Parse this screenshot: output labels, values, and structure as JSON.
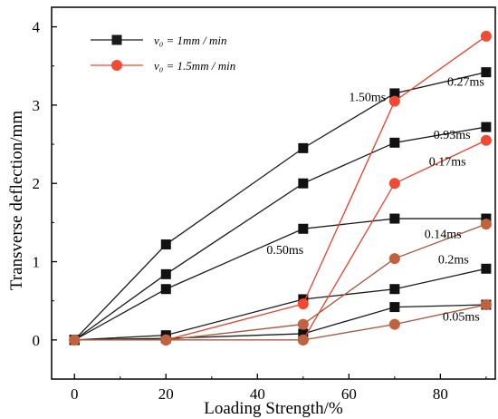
{
  "chart_data": {
    "type": "line",
    "xlabel": "Loading Strength/%",
    "ylabel": "Transverse deflection/mm",
    "xlim": [
      -5,
      92
    ],
    "ylim": [
      -0.5,
      4.25
    ],
    "xticks": [
      0,
      20,
      40,
      60,
      80
    ],
    "yticks": [
      0,
      1,
      2,
      3,
      4
    ],
    "x": [
      0,
      20,
      50,
      70,
      90
    ],
    "grid": false,
    "legend_position": "top-left",
    "colors": {
      "black": "#1a1a1a",
      "red": "#e8402c",
      "brown": "#a8563c",
      "red_marker": "#f04a34",
      "brown_marker": "#c0623e"
    },
    "legend": [
      {
        "label": "v₀ = 1mm / min",
        "marker": "square",
        "color": "#1a1a1a"
      },
      {
        "label": "v₀ = 1.5mm / min",
        "marker": "circle",
        "color": "#f04a34"
      }
    ],
    "series": [
      {
        "marker": "square",
        "line_color": "#1a1a1a",
        "marker_color": "#111111",
        "values": [
          0,
          1.22,
          2.45,
          3.15,
          3.42
        ]
      },
      {
        "marker": "square",
        "line_color": "#1a1a1a",
        "marker_color": "#111111",
        "values": [
          0,
          0.84,
          2.0,
          2.52,
          2.72
        ]
      },
      {
        "marker": "square",
        "line_color": "#1a1a1a",
        "marker_color": "#111111",
        "values": [
          0,
          0.65,
          1.42,
          1.55,
          1.55
        ]
      },
      {
        "marker": "square",
        "line_color": "#1a1a1a",
        "marker_color": "#111111",
        "values": [
          0,
          0.06,
          0.52,
          0.65,
          0.91
        ]
      },
      {
        "marker": "square",
        "line_color": "#1a1a1a",
        "marker_color": "#111111",
        "values": [
          0,
          0.02,
          0.08,
          0.42,
          0.45
        ]
      },
      {
        "marker": "circle",
        "line_color": "#e8402c",
        "marker_color": "#f04a34",
        "values": [
          0,
          0.0,
          0.46,
          3.05,
          3.88
        ]
      },
      {
        "marker": "circle",
        "line_color": "#e8402c",
        "marker_color": "#f04a34",
        "values": [
          0,
          0.0,
          0.0,
          2.0,
          2.55
        ]
      },
      {
        "marker": "circle",
        "line_color": "#a8563c",
        "marker_color": "#c0623e",
        "values": [
          0,
          0.0,
          0.2,
          1.04,
          1.48
        ]
      },
      {
        "marker": "circle",
        "line_color": "#a8563c",
        "marker_color": "#c0623e",
        "values": [
          0,
          0.0,
          0.0,
          0.2,
          0.45
        ]
      }
    ],
    "annotations": [
      {
        "text": "1.50ms",
        "x": 60,
        "y": 3.05
      },
      {
        "text": "0.27ms",
        "x": 81.5,
        "y": 3.25
      },
      {
        "text": "0.93ms",
        "x": 78.5,
        "y": 2.57
      },
      {
        "text": "0.17ms",
        "x": 77.5,
        "y": 2.23
      },
      {
        "text": "0.50ms",
        "x": 42,
        "y": 1.1
      },
      {
        "text": "0.14ms",
        "x": 76.5,
        "y": 1.3
      },
      {
        "text": "0.2ms",
        "x": 79.5,
        "y": 0.98
      },
      {
        "text": "0.05ms",
        "x": 80.5,
        "y": 0.25
      }
    ]
  }
}
